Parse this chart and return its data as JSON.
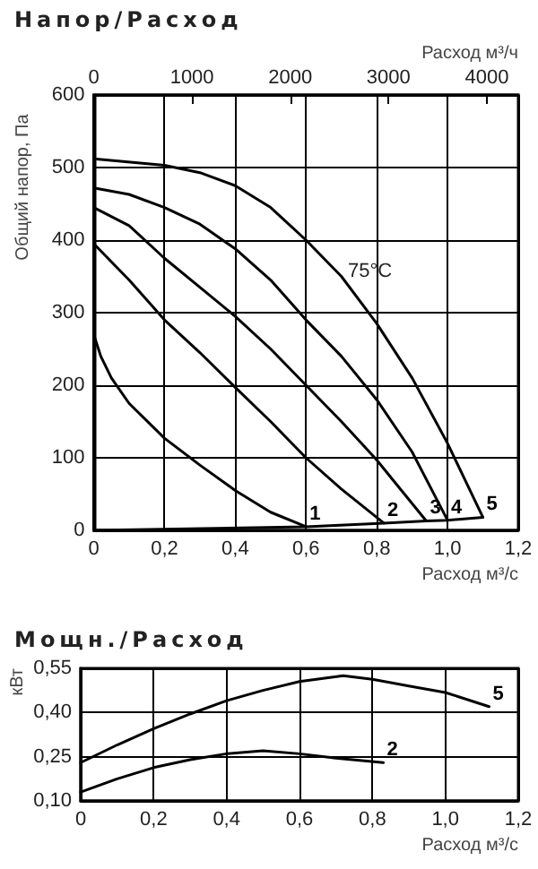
{
  "chart_data": [
    {
      "type": "line",
      "title": "Напор/Расход",
      "xlabel": "Расход м³/с",
      "x2label": "Расход м³/ч",
      "ylabel": "Общий напор, Па",
      "xlim": [
        0,
        1.2
      ],
      "xticks": [
        0,
        {
          "value": 0.2,
          "label": "0,2"
        },
        {
          "value": 0.4,
          "label": "0,4"
        },
        {
          "value": 0.6,
          "label": "0,6"
        },
        {
          "value": 0.8,
          "label": "0,8"
        },
        {
          "value": 1.0,
          "label": "1,0"
        },
        {
          "value": 1.2,
          "label": "1,2"
        }
      ],
      "x2lim": [
        0,
        4320
      ],
      "x2ticks": [
        0,
        1000,
        2000,
        3000,
        4000
      ],
      "ylim": [
        0,
        600
      ],
      "yticks": [
        0,
        100,
        200,
        300,
        400,
        500,
        600
      ],
      "grid": true,
      "legend": false,
      "marker": "none",
      "annotations": [
        "75°C"
      ],
      "series": [
        {
          "name": "1",
          "color": "#000000",
          "x": [
            0,
            0.02,
            0.05,
            0.1,
            0.2,
            0.3,
            0.4,
            0.5,
            0.6
          ],
          "values": [
            270,
            240,
            210,
            175,
            127,
            90,
            55,
            25,
            5
          ]
        },
        {
          "name": "2",
          "color": "#000000",
          "x": [
            0,
            0.1,
            0.2,
            0.3,
            0.4,
            0.5,
            0.6,
            0.7,
            0.82
          ],
          "values": [
            395,
            345,
            290,
            245,
            197,
            150,
            100,
            57,
            10
          ]
        },
        {
          "name": "3",
          "color": "#000000",
          "x": [
            0,
            0.1,
            0.2,
            0.3,
            0.4,
            0.5,
            0.6,
            0.7,
            0.8,
            0.94
          ],
          "values": [
            445,
            420,
            375,
            335,
            295,
            250,
            200,
            150,
            97,
            13
          ]
        },
        {
          "name": "4",
          "color": "#000000",
          "x": [
            0,
            0.1,
            0.2,
            0.3,
            0.4,
            0.5,
            0.6,
            0.7,
            0.8,
            0.9,
            1.0
          ],
          "values": [
            472,
            463,
            445,
            422,
            388,
            345,
            290,
            240,
            180,
            108,
            14
          ]
        },
        {
          "name": "5",
          "color": "#000000",
          "x": [
            0,
            0.2,
            0.3,
            0.4,
            0.5,
            0.6,
            0.7,
            0.8,
            0.9,
            1.0,
            1.1
          ],
          "values": [
            512,
            503,
            493,
            475,
            445,
            400,
            350,
            285,
            210,
            120,
            18
          ]
        },
        {
          "color": "#000000",
          "x": [
            0,
            0.6,
            0.82,
            0.94,
            1.0,
            1.1
          ],
          "values": [
            0,
            5,
            10,
            13,
            14,
            18
          ]
        }
      ]
    },
    {
      "type": "line",
      "title": "Мощн./Расход",
      "xlabel": "Расход м³/с",
      "ylabel": "кВт",
      "xlim": [
        0,
        1.2
      ],
      "xticks": [
        0,
        {
          "value": 0.2,
          "label": "0,2"
        },
        {
          "value": 0.4,
          "label": "0,4"
        },
        {
          "value": 0.6,
          "label": "0,6"
        },
        {
          "value": 0.8,
          "label": "0,8"
        },
        {
          "value": 1.0,
          "label": "1,0"
        },
        {
          "value": 1.2,
          "label": "1,2"
        }
      ],
      "ylim": [
        0.1,
        0.55
      ],
      "yticks": [
        {
          "value": 0.1,
          "label": "0,10"
        },
        {
          "value": 0.25,
          "label": "0,25"
        },
        {
          "value": 0.4,
          "label": "0,40"
        },
        {
          "value": 0.55,
          "label": "0,55"
        }
      ],
      "grid": true,
      "legend": false,
      "marker": "none",
      "series": [
        {
          "name": "5",
          "color": "#000000",
          "x": [
            0,
            0.1,
            0.2,
            0.3,
            0.4,
            0.5,
            0.6,
            0.72,
            0.8,
            0.9,
            1.0,
            1.12
          ],
          "values": [
            0.23,
            0.29,
            0.345,
            0.395,
            0.44,
            0.475,
            0.505,
            0.525,
            0.513,
            0.49,
            0.468,
            0.42
          ]
        },
        {
          "name": "2",
          "color": "#000000",
          "x": [
            0,
            0.1,
            0.2,
            0.3,
            0.4,
            0.5,
            0.6,
            0.7,
            0.83
          ],
          "values": [
            0.13,
            0.175,
            0.213,
            0.24,
            0.26,
            0.27,
            0.26,
            0.245,
            0.23
          ]
        }
      ]
    }
  ]
}
